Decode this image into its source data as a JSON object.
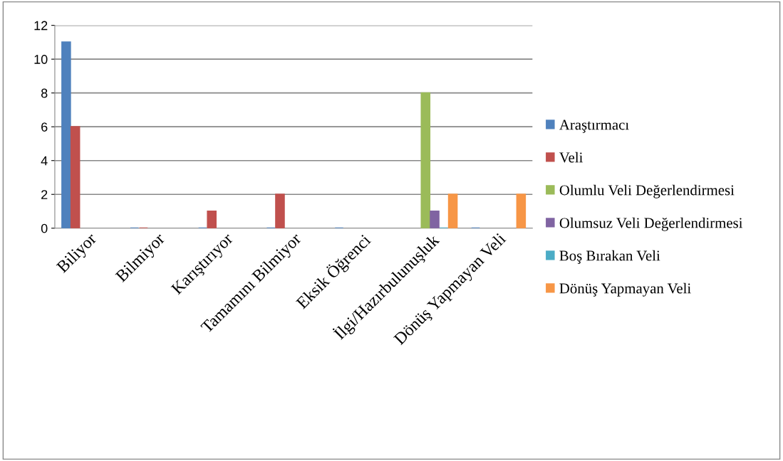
{
  "chart_data": {
    "type": "bar",
    "categories": [
      "Biliyor",
      "Bilmiyor",
      "Karıştırıyor",
      "Tamamını Bilmiyor",
      "Eksik Öğrenci",
      "İlgi/Hazırbulunuşluk",
      "Dönüş Yapmayan Veli"
    ],
    "series": [
      {
        "name": "Araştırmacı",
        "color": "#4f81bd",
        "values": [
          11,
          0,
          0,
          0,
          0,
          null,
          0
        ]
      },
      {
        "name": "Veli",
        "color": "#c0504d",
        "values": [
          6,
          0,
          1,
          2,
          null,
          null,
          null
        ]
      },
      {
        "name": "Olumlu Veli Değerlendirmesi",
        "color": "#9bbb59",
        "values": [
          null,
          null,
          null,
          null,
          null,
          8,
          null
        ]
      },
      {
        "name": "Olumsuz Veli Değerlendirmesi",
        "color": "#8064a2",
        "values": [
          null,
          null,
          null,
          null,
          null,
          1,
          null
        ]
      },
      {
        "name": "Boş Bırakan Veli",
        "color": "#4bacc6",
        "values": [
          null,
          null,
          null,
          null,
          null,
          0,
          null
        ]
      },
      {
        "name": "Dönüş Yapmayan Veli",
        "color": "#f79646",
        "values": [
          null,
          null,
          null,
          null,
          null,
          2,
          2
        ]
      }
    ],
    "ylim": [
      0,
      12
    ],
    "yticks": [
      0,
      2,
      4,
      6,
      8,
      10,
      12
    ],
    "grid": "y",
    "legend": "right"
  }
}
